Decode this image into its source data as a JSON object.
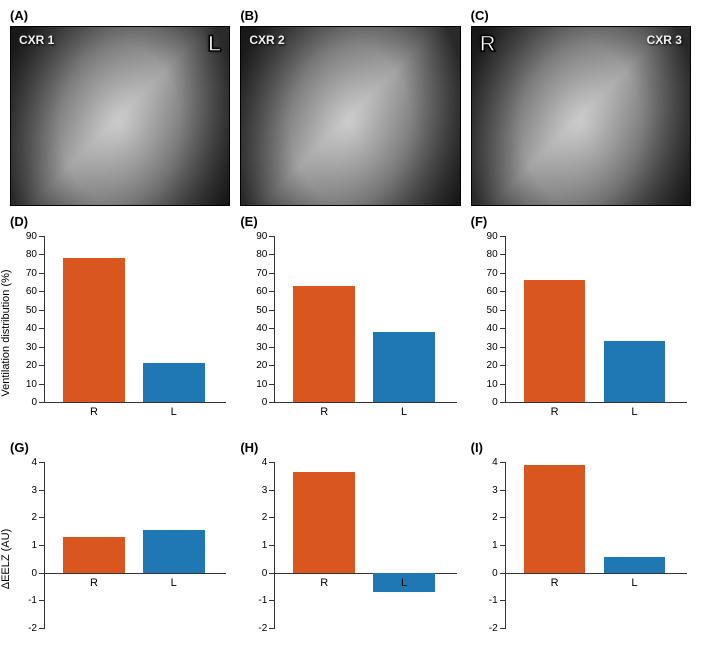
{
  "colors": {
    "bar_r": "#d9571f",
    "bar_l": "#1f77b4",
    "axis": "#333333",
    "text": "#000000",
    "bg": "#ffffff"
  },
  "xray_panels": [
    {
      "id": "A",
      "tag": "CXR 1",
      "tag_side": "left",
      "side_marker": "L",
      "marker_pos": "right"
    },
    {
      "id": "B",
      "tag": "CXR 2",
      "tag_side": "left",
      "side_marker": "",
      "marker_pos": ""
    },
    {
      "id": "C",
      "tag": "CXR 3",
      "tag_side": "right",
      "side_marker": "R",
      "marker_pos": "left"
    }
  ],
  "row2_ylabel": "Ventilation distribution (%)",
  "row2": {
    "ylim": [
      0,
      90
    ],
    "ytick_step": 10,
    "panels": [
      {
        "id": "D",
        "R": 78,
        "L": 21
      },
      {
        "id": "E",
        "R": 63,
        "L": 38
      },
      {
        "id": "F",
        "R": 66,
        "L": 33
      }
    ]
  },
  "row3_ylabel": "ΔEELZ (AU)",
  "row3": {
    "ylim": [
      -2,
      4
    ],
    "ytick_step": 1,
    "panels": [
      {
        "id": "G",
        "R": 1.3,
        "L": 1.55
      },
      {
        "id": "H",
        "R": 3.65,
        "L": -0.7
      },
      {
        "id": "I",
        "R": 3.9,
        "L": 0.55
      }
    ]
  },
  "categories": [
    "R",
    "L"
  ],
  "fontsize": {
    "panel_label": 13,
    "axis_label": 11,
    "tick": 10
  }
}
